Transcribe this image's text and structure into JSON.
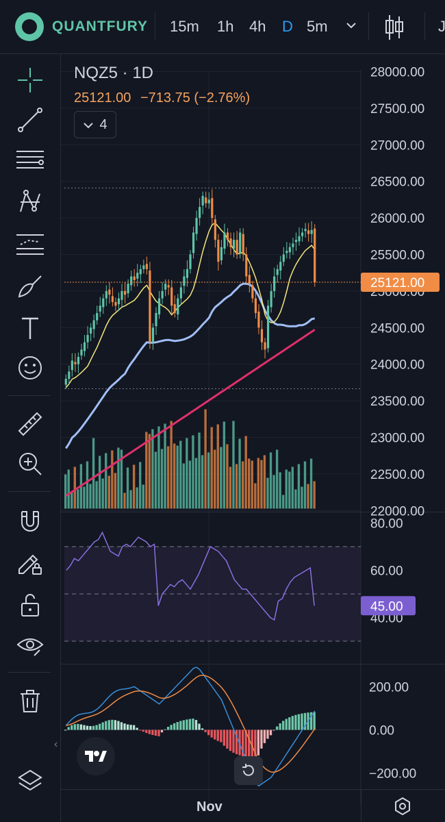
{
  "brand": {
    "name": "QUANTFURY"
  },
  "timeframes": [
    {
      "label": "15m",
      "active": false
    },
    {
      "label": "1h",
      "active": false
    },
    {
      "label": "4h",
      "active": false
    },
    {
      "label": "D",
      "active": true
    },
    {
      "label": "5m",
      "active": false
    }
  ],
  "toolbar_right": {
    "overflow_text": "J"
  },
  "left_tools": [
    {
      "name": "crosshair-icon"
    },
    {
      "name": "trend-line-icon"
    },
    {
      "name": "horizontal-lines-icon"
    },
    {
      "name": "pattern-icon"
    },
    {
      "name": "prediction-measure-icon"
    },
    {
      "name": "brush-icon"
    },
    {
      "name": "text-icon"
    },
    {
      "name": "emoji-icon"
    },
    {
      "name": "ruler-icon"
    },
    {
      "name": "zoom-in-icon"
    },
    {
      "name": "magnet-icon"
    },
    {
      "name": "lock-drawing-icon"
    },
    {
      "name": "unlock-icon"
    },
    {
      "name": "eye-icon"
    },
    {
      "name": "trash-icon"
    },
    {
      "name": "layers-icon"
    }
  ],
  "symbol": {
    "title": "NQZ5 · 1D",
    "last": "25121.00",
    "change": "−713.75",
    "change_pct": "(−2.76%)",
    "indicator_count": "4"
  },
  "colors": {
    "up": "#5fc5a8",
    "down": "#f08c46",
    "ma_short": "#f5e87c",
    "ma_mid": "#9fbef5",
    "ma_long": "#e0306a",
    "rsi": "#8a6fe0",
    "macd": "#3a8fd8",
    "signal": "#f08c46",
    "last_price_bg": "#f08c46",
    "rsi_bg": "#7b5fd0"
  },
  "price_axis": {
    "ticks": [
      "28000.00",
      "27500.00",
      "27000.00",
      "26500.00",
      "26000.00",
      "25500.00",
      "25000.00",
      "24500.00",
      "24000.00",
      "23500.00",
      "23000.00",
      "22500.00",
      "22000.00"
    ],
    "last_price_label": "25121.00"
  },
  "rsi_axis": {
    "ticks": [
      "80.00",
      "60.00",
      "40.00"
    ],
    "current_label": "45.00"
  },
  "macd_axis": {
    "ticks": [
      "200.00",
      "0.00",
      "−200.00"
    ]
  },
  "time_axis": {
    "label": "Nov"
  },
  "chart_data": {
    "type": "candlestick",
    "price_ylim": [
      22000,
      28000
    ],
    "closes": [
      23800,
      23900,
      24050,
      24000,
      24100,
      24200,
      24300,
      24400,
      24500,
      24600,
      24700,
      24800,
      24900,
      25000,
      24950,
      24850,
      24800,
      24900,
      25000,
      24950,
      25100,
      25200,
      25150,
      25250,
      25300,
      25350,
      25300,
      24300,
      24500,
      24700,
      24900,
      25000,
      25100,
      25050,
      24800,
      24700,
      24900,
      25050,
      25200,
      25300,
      25500,
      25800,
      26000,
      26150,
      26300,
      26200,
      26250,
      26000,
      25700,
      25400,
      25600,
      25800,
      25700,
      25600,
      25700,
      25500,
      25800,
      25500,
      25200,
      25100,
      24900,
      24700,
      24500,
      24300,
      24200,
      24800,
      25000,
      25200,
      25300,
      25400,
      25500,
      25550,
      25600,
      25650,
      25700,
      25750,
      25800,
      25850,
      25780,
      25834,
      25121
    ],
    "rsi_values": [
      60,
      62,
      65,
      64,
      66,
      68,
      70,
      72,
      73,
      76,
      72,
      68,
      67,
      66,
      70,
      71,
      70,
      72,
      74,
      73,
      72,
      70,
      71,
      45,
      50,
      52,
      54,
      53,
      55,
      56,
      54,
      52,
      55,
      58,
      62,
      66,
      70,
      69,
      68,
      66,
      64,
      60,
      56,
      54,
      52,
      52,
      50,
      48,
      46,
      44,
      42,
      40,
      39,
      47,
      48,
      52,
      55,
      57,
      58,
      59,
      60,
      61,
      45
    ],
    "rsi_bands": [
      70,
      50,
      30
    ],
    "macd_ylim": [
      -300,
      300
    ]
  }
}
